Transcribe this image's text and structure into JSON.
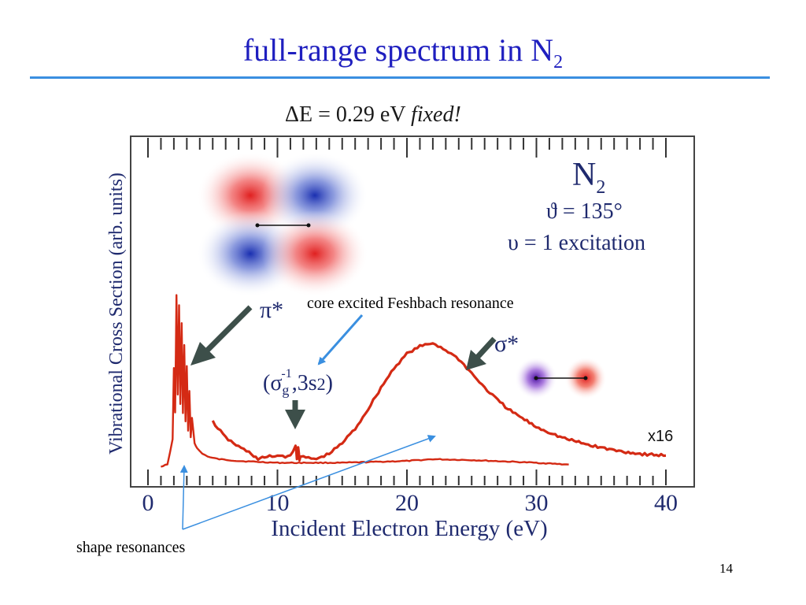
{
  "slide": {
    "title": "full-range spectrum in N",
    "title_sub": "2",
    "page_number": "14",
    "title_color": "#1f1fbf",
    "rule_color": "#3a8fe0"
  },
  "chart_data": {
    "type": "line",
    "header_delta": "ΔE",
    "header_value": " = 0.29 eV ",
    "header_tail": "fixed!",
    "xlabel": "Incident Electron Energy (eV)",
    "ylabel": "Vibrational Cross Section (arb. units)",
    "xlim": [
      0,
      40
    ],
    "ylim": [
      0,
      1
    ],
    "x_ticks": [
      0,
      10,
      20,
      30,
      40
    ],
    "grid": false,
    "legend": "none",
    "line_color": "#d42a14",
    "info": {
      "molecule": "N",
      "molecule_sub": "2",
      "angle_line": "ϑ = 135°",
      "excitation_line": "υ = 1 excitation"
    },
    "annotations": {
      "pi_star": "π*",
      "sigma_star": "σ*",
      "scale_factor": "x16",
      "feshbach_open": "(σ",
      "feshbach_sub": "g",
      "feshbach_sup": "-1",
      "feshbach_mid": ",3s",
      "feshbach_sup2": "2",
      "feshbach_close": ")",
      "feshbach_note": "core excited Feshbach resonance",
      "shape_note": "shape resonances"
    },
    "series": [
      {
        "scale": "x1",
        "x": [
          1.0,
          1.5,
          1.9,
          2.0,
          2.1,
          2.2,
          2.3,
          2.4,
          2.5,
          2.6,
          2.7,
          2.8,
          2.9,
          3.0,
          3.1,
          3.2,
          3.3,
          3.4,
          3.6,
          3.8,
          4.2,
          4.8,
          5.5,
          7.0,
          10.0,
          15.0,
          20.0,
          22.0,
          25.0,
          30.0,
          32.5
        ],
        "y": [
          0.0,
          0.01,
          0.15,
          0.55,
          0.3,
          0.96,
          0.4,
          0.9,
          0.35,
          0.8,
          0.3,
          0.68,
          0.25,
          0.56,
          0.2,
          0.42,
          0.16,
          0.27,
          0.13,
          0.1,
          0.07,
          0.05,
          0.04,
          0.03,
          0.02,
          0.02,
          0.03,
          0.04,
          0.035,
          0.02,
          0.01
        ]
      },
      {
        "scale": "x16",
        "x": [
          5.0,
          6.0,
          7.0,
          8.0,
          8.5,
          9.0,
          10.0,
          11.0,
          11.4,
          11.5,
          11.6,
          11.7,
          11.8,
          12.0,
          13.0,
          14.0,
          15.0,
          16.0,
          17.0,
          18.0,
          19.0,
          20.0,
          21.0,
          22.0,
          23.0,
          24.0,
          25.0,
          26.0,
          27.0,
          28.0,
          30.0,
          32.0,
          34.0,
          36.0,
          38.0,
          40.0
        ],
        "y": [
          0.25,
          0.16,
          0.11,
          0.07,
          0.04,
          0.05,
          0.06,
          0.055,
          0.12,
          0.04,
          0.11,
          0.04,
          0.06,
          0.05,
          0.04,
          0.07,
          0.13,
          0.21,
          0.32,
          0.44,
          0.55,
          0.63,
          0.67,
          0.69,
          0.65,
          0.6,
          0.52,
          0.44,
          0.37,
          0.31,
          0.22,
          0.16,
          0.12,
          0.09,
          0.07,
          0.06
        ]
      }
    ]
  }
}
